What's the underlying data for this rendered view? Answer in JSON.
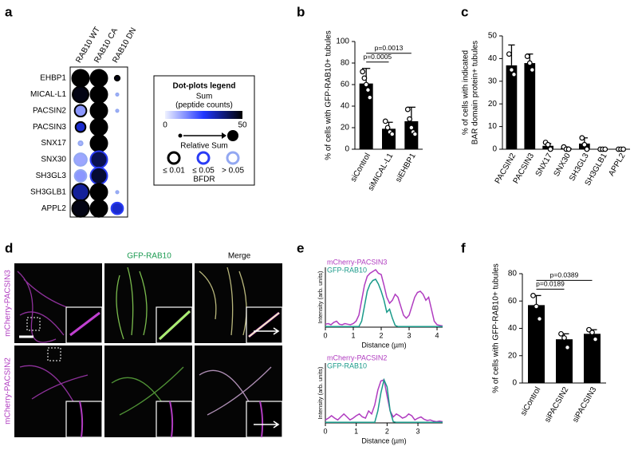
{
  "panels": {
    "letters": [
      "a",
      "b",
      "c",
      "d",
      "e",
      "f"
    ]
  },
  "microscopy": {
    "columns": [
      "GFP-RAB10",
      "Merge"
    ],
    "rows": [
      "mCherry-PACSIN3",
      "mCherry-PACSIN2"
    ]
  },
  "chart_data": [
    {
      "type": "dot",
      "columns": [
        "RAB10 WT",
        "RAB10 CA",
        "RAB10 DN"
      ],
      "rows": [
        "EHBP1",
        "MICAL-L1",
        "PACSIN2",
        "PACSIN3",
        "SNX17",
        "SNX30",
        "SH3GL3",
        "SH3GLB1",
        "APPL2"
      ],
      "series": [
        {
          "name": "RAB10 WT",
          "values": [
            50,
            48,
            12,
            30,
            8,
            10,
            12,
            35,
            48
          ],
          "sizes": [
            1,
            0.95,
            0.7,
            0.6,
            0.25,
            0.75,
            0.7,
            1,
            1
          ],
          "bfdr": [
            "≤ 0.01",
            "≤ 0.01",
            "≤ 0.01",
            "≤ 0.01",
            "> 0.05",
            "> 0.05",
            "> 0.05",
            "≤ 0.01",
            "≤ 0.01"
          ]
        },
        {
          "name": "RAB10 CA",
          "values": [
            50,
            50,
            50,
            50,
            50,
            42,
            45,
            50,
            50
          ],
          "sizes": [
            1,
            1,
            1,
            1,
            1,
            1,
            1,
            1,
            1
          ],
          "bfdr": [
            "≤ 0.01",
            "≤ 0.01",
            "≤ 0.01",
            "≤ 0.01",
            "≤ 0.01",
            "≤ 0.05",
            "≤ 0.05",
            "≤ 0.01",
            "≤ 0.01"
          ]
        },
        {
          "name": "RAB10 DN",
          "values": [
            48,
            6,
            6,
            null,
            null,
            null,
            null,
            6,
            30
          ],
          "sizes": [
            0.3,
            0.15,
            0.15,
            null,
            null,
            null,
            null,
            0.15,
            0.7
          ],
          "bfdr": [
            "≤ 0.01",
            "> 0.05",
            "> 0.05",
            null,
            null,
            null,
            null,
            "> 0.05",
            "≤ 0.05"
          ]
        }
      ],
      "legend": {
        "title": "Dot-plots legend",
        "sum_label": "Sum",
        "sum_unit": "(peptide counts)",
        "sum_lim": [
          0,
          50
        ],
        "colormap": [
          "#eef1ff",
          "#2036ff",
          "#000000"
        ],
        "size_label": "Relative Sum",
        "bfdr_label": "BFDR",
        "bfdr_classes": [
          {
            "label": "≤ 0.01",
            "color": "#000000"
          },
          {
            "label": "≤ 0.05",
            "color": "#2a3cf5"
          },
          {
            "label": "> 0.05",
            "color": "#93a8f2"
          }
        ]
      }
    },
    {
      "type": "bar",
      "categories": [
        "siControl",
        "siMICAL-L1",
        "siEHBP1"
      ],
      "values": [
        61,
        19,
        26
      ],
      "errors": [
        14,
        6,
        13
      ],
      "points": [
        [
          72,
          66,
          60,
          55,
          48
        ],
        [
          26,
          20,
          16,
          14
        ],
        [
          37,
          28,
          20,
          16,
          14
        ]
      ],
      "color": "#000000",
      "ylabel": [
        "% of cells with GFP-RAB10+ tubules"
      ],
      "ylim": [
        0,
        100
      ],
      "yticks": [
        0,
        20,
        40,
        60,
        80,
        100
      ],
      "annotations": [
        {
          "text": "p=0.0005",
          "between": [
            "siControl",
            "siMICAL-L1"
          ]
        },
        {
          "text": "p=0.0013",
          "between": [
            "siControl",
            "siEHBP1"
          ]
        }
      ]
    },
    {
      "type": "bar",
      "categories": [
        "PACSIN2",
        "PACSIN3",
        "SNX17",
        "SNX30",
        "SH3GL3",
        "SH3GLB1",
        "APPL2"
      ],
      "values": [
        37,
        38,
        1.5,
        0.5,
        2.5,
        0,
        0
      ],
      "errors": [
        9,
        4,
        1,
        0.5,
        2.5,
        0,
        0
      ],
      "points": [
        [
          42,
          35,
          33
        ],
        [
          41,
          38,
          35
        ],
        [
          3,
          2,
          0
        ],
        [
          1,
          0,
          0
        ],
        [
          5,
          2,
          0
        ],
        [
          0,
          0,
          0
        ],
        [
          0,
          0,
          0
        ]
      ],
      "color": "#000000",
      "ylabel": [
        "% of cells with indicated",
        "BAR domain protein+ tubules"
      ],
      "ylim": [
        0,
        50
      ],
      "yticks": [
        0,
        10,
        20,
        30,
        40,
        50
      ]
    },
    {
      "type": "line",
      "xlabel": "Distance (µm)",
      "ylabel": "Intensity (arb. units)",
      "xlim": [
        0,
        4.2
      ],
      "xticks": [
        0,
        1,
        2,
        3,
        4
      ],
      "ylim": [
        0,
        1
      ],
      "x": [
        0,
        0.1,
        0.2,
        0.3,
        0.4,
        0.5,
        0.6,
        0.7,
        0.8,
        0.9,
        1,
        1.1,
        1.2,
        1.3,
        1.4,
        1.5,
        1.6,
        1.7,
        1.8,
        1.9,
        2,
        2.1,
        2.2,
        2.3,
        2.4,
        2.5,
        2.6,
        2.7,
        2.8,
        2.9,
        3,
        3.1,
        3.2,
        3.3,
        3.4,
        3.5,
        3.6,
        3.7,
        3.8,
        3.9,
        4,
        4.1,
        4.2
      ],
      "series": [
        {
          "name": "mCherry-PACSIN3",
          "color": "#b03cc0",
          "values": [
            0.05,
            0.06,
            0.04,
            0.08,
            0.1,
            0.05,
            0.04,
            0.06,
            0.05,
            0.04,
            0.06,
            0.1,
            0.2,
            0.45,
            0.7,
            0.85,
            0.9,
            0.93,
            0.96,
            0.9,
            0.88,
            0.7,
            0.5,
            0.4,
            0.45,
            0.55,
            0.5,
            0.35,
            0.2,
            0.15,
            0.2,
            0.35,
            0.5,
            0.58,
            0.6,
            0.55,
            0.45,
            0.5,
            0.3,
            0.1,
            0.04,
            0.03,
            0.02
          ]
        },
        {
          "name": "GFP-RAB10",
          "color": "#1a9a8a",
          "values": [
            0.01,
            0.01,
            0.01,
            0.01,
            0.01,
            0.01,
            0.01,
            0.01,
            0.01,
            0.01,
            0.01,
            0.01,
            0.01,
            0.1,
            0.35,
            0.6,
            0.72,
            0.78,
            0.8,
            0.72,
            0.6,
            0.45,
            0.25,
            0.3,
            0.15,
            0.03,
            0.01,
            0.01,
            0.01,
            0.01,
            0.01,
            0.01,
            0.01,
            0.01,
            0.01,
            0.01,
            0.01,
            0.01,
            0.01,
            0.01,
            0.01,
            0.01,
            0.01
          ]
        }
      ]
    },
    {
      "type": "line",
      "xlabel": "Distance (µm)",
      "ylabel": "Intensity (arb. units)",
      "xlim": [
        0,
        3.8
      ],
      "xticks": [
        0,
        1,
        2,
        3
      ],
      "ylim": [
        0,
        1
      ],
      "x": [
        0,
        0.1,
        0.2,
        0.3,
        0.4,
        0.5,
        0.6,
        0.7,
        0.8,
        0.9,
        1,
        1.1,
        1.2,
        1.3,
        1.4,
        1.5,
        1.6,
        1.7,
        1.8,
        1.9,
        2,
        2.1,
        2.2,
        2.3,
        2.4,
        2.5,
        2.6,
        2.7,
        2.8,
        2.9,
        3,
        3.1,
        3.2,
        3.3,
        3.4,
        3.5,
        3.6,
        3.7,
        3.8
      ],
      "series": [
        {
          "name": "mCherry-PACSIN2",
          "color": "#b03cc0",
          "values": [
            0.05,
            0.08,
            0.12,
            0.08,
            0.05,
            0.1,
            0.15,
            0.1,
            0.05,
            0.08,
            0.12,
            0.15,
            0.1,
            0.08,
            0.2,
            0.15,
            0.3,
            0.55,
            0.7,
            0.72,
            0.45,
            0.2,
            0.1,
            0.15,
            0.12,
            0.08,
            0.1,
            0.15,
            0.12,
            0.05,
            0.08,
            0.1,
            0.06,
            0.04,
            0.05,
            0.03,
            0.02,
            0.03,
            0.02
          ]
        },
        {
          "name": "GFP-RAB10",
          "color": "#1a9a8a",
          "values": [
            0.01,
            0.01,
            0.01,
            0.01,
            0.01,
            0.01,
            0.01,
            0.01,
            0.01,
            0.01,
            0.01,
            0.01,
            0.01,
            0.01,
            0.01,
            0.01,
            0.01,
            0.2,
            0.5,
            0.72,
            0.6,
            0.2,
            0.02,
            0.01,
            0.01,
            0.01,
            0.01,
            0.01,
            0.01,
            0.01,
            0.01,
            0.01,
            0.01,
            0.01,
            0.01,
            0.01,
            0.01,
            0.01,
            0.01
          ]
        }
      ]
    },
    {
      "type": "bar",
      "categories": [
        "siControl",
        "siPACSIN2",
        "siPACSIN3"
      ],
      "values": [
        57,
        32,
        36
      ],
      "errors": [
        7,
        4,
        3
      ],
      "points": [
        [
          64,
          56,
          47
        ],
        [
          36,
          33,
          26
        ],
        [
          39,
          37,
          32
        ]
      ],
      "color": "#000000",
      "ylabel": [
        "% of cells with GFP-RAB10+ tubules"
      ],
      "ylim": [
        0,
        80
      ],
      "yticks": [
        0,
        20,
        40,
        60,
        80
      ],
      "annotations": [
        {
          "text": "p=0.0189",
          "between": [
            "siControl",
            "siPACSIN2"
          ]
        },
        {
          "text": "p=0.0389",
          "between": [
            "siControl",
            "siPACSIN3"
          ]
        }
      ]
    }
  ]
}
